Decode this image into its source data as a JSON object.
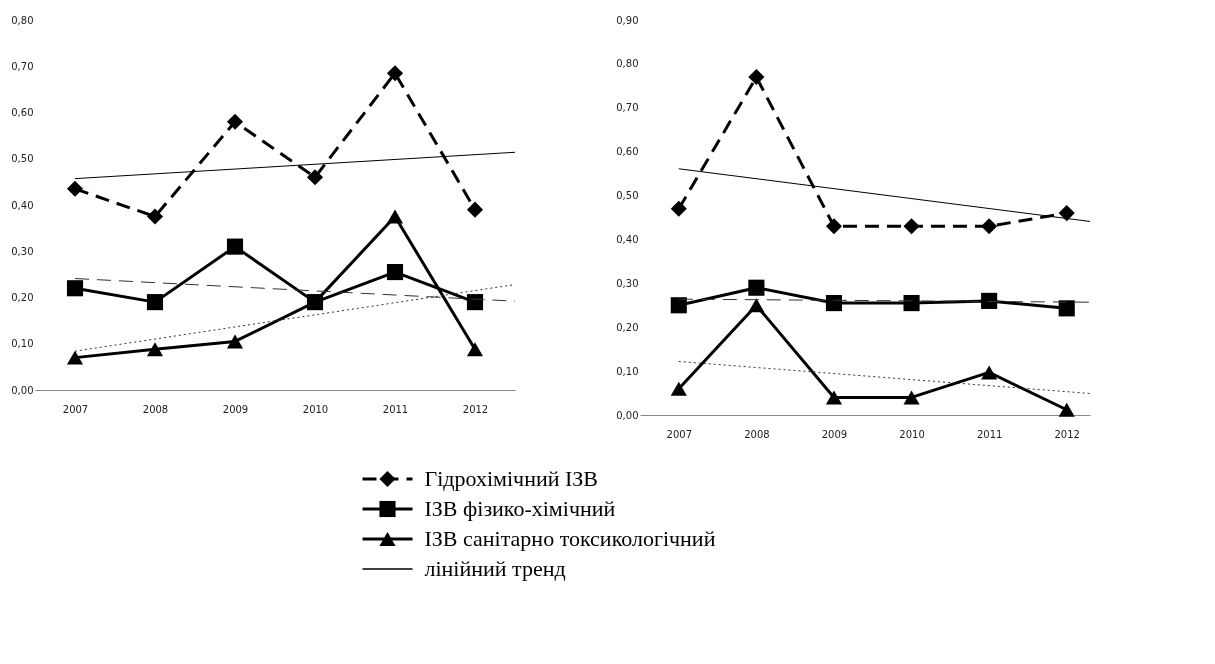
{
  "chart_data": [
    {
      "type": "line",
      "legend": "bottom",
      "xlim": [
        2006.5,
        2012.5
      ],
      "xticks": [
        2007,
        2008,
        2009,
        2010,
        2011,
        2012
      ],
      "ylim": [
        0,
        0.8
      ],
      "yticks": [
        {
          "value": 0,
          "label": "0,00"
        },
        {
          "value": 0.1,
          "label": "0,10"
        },
        {
          "value": 0.2,
          "label": "0,20"
        },
        {
          "value": 0.3,
          "label": "0,30"
        },
        {
          "value": 0.4,
          "label": "0,40"
        },
        {
          "value": 0.5,
          "label": "0,50"
        },
        {
          "value": 0.6,
          "label": "0,60"
        },
        {
          "value": 0.7,
          "label": "0,70"
        },
        {
          "value": 0.8,
          "label": "0,80"
        }
      ],
      "x": [
        2007,
        2008,
        2009,
        2010,
        2011,
        2012
      ],
      "series": [
        {
          "name": "Гідрохімічний ІЗВ",
          "color": "#000000",
          "marker": "diamond",
          "line_style": "dashed",
          "values": [
            0.435,
            0.375,
            0.58,
            0.46,
            0.685,
            0.39
          ]
        },
        {
          "name": "ІЗВ фізико-хімічний",
          "color": "#000000",
          "marker": "square",
          "line_style": "solid",
          "values": [
            0.22,
            0.19,
            0.31,
            0.19,
            0.255,
            0.19
          ]
        },
        {
          "name": "ІЗВ санітарно токсикологічний",
          "color": "#000000",
          "marker": "triangle",
          "line_style": "solid",
          "values": [
            0.07,
            0.088,
            0.105,
            0.19,
            0.375,
            0.088
          ]
        },
        {
          "name": "лінійний тренд",
          "type": "line",
          "color": "#000000",
          "marker": "none",
          "line_style": "solid",
          "x": [
            2007,
            2012.5
          ],
          "values": [
            0.457,
            0.514
          ]
        },
        {
          "type": "line",
          "color": "#333333",
          "marker": "none",
          "line_style": "dashed",
          "x": [
            2007,
            2012.5
          ],
          "values": [
            0.241,
            0.192
          ]
        },
        {
          "type": "line",
          "color": "#333333",
          "marker": "none",
          "line_style": "dotted",
          "x": [
            2007,
            2012.5
          ],
          "values": [
            0.084,
            0.228
          ]
        }
      ]
    },
    {
      "type": "line",
      "xlim": [
        2006.5,
        2012.3
      ],
      "xticks": [
        2007,
        2008,
        2009,
        2010,
        2011,
        2012
      ],
      "ylim": [
        0,
        0.9
      ],
      "yticks": [
        {
          "value": 0,
          "label": "0,00"
        },
        {
          "value": 0.1,
          "label": "0,10"
        },
        {
          "value": 0.2,
          "label": "0,20"
        },
        {
          "value": 0.3,
          "label": "0,30"
        },
        {
          "value": 0.4,
          "label": "0,40"
        },
        {
          "value": 0.5,
          "label": "0,50"
        },
        {
          "value": 0.6,
          "label": "0,60"
        },
        {
          "value": 0.7,
          "label": "0,70"
        },
        {
          "value": 0.8,
          "label": "0,80"
        },
        {
          "value": 0.9,
          "label": "0,90"
        }
      ],
      "x": [
        2007,
        2008,
        2009,
        2010,
        2011,
        2012
      ],
      "series": [
        {
          "color": "#000000",
          "marker": "diamond",
          "line_style": "dashed",
          "values": [
            0.47,
            0.77,
            0.43,
            0.43,
            0.43,
            0.46
          ]
        },
        {
          "color": "#000000",
          "marker": "square",
          "line_style": "solid",
          "values": [
            0.25,
            0.29,
            0.255,
            0.255,
            0.26,
            0.243
          ]
        },
        {
          "color": "#000000",
          "marker": "triangle",
          "line_style": "solid",
          "values": [
            0.06,
            0.25,
            0.04,
            0.04,
            0.097,
            0.012
          ]
        },
        {
          "type": "line",
          "color": "#000000",
          "marker": "none",
          "line_style": "solid",
          "x": [
            2007,
            2012.3
          ],
          "values": [
            0.561,
            0.441
          ]
        },
        {
          "type": "line",
          "color": "#333333",
          "marker": "none",
          "line_style": "dashed",
          "x": [
            2007,
            2012.3
          ],
          "values": [
            0.264,
            0.257
          ]
        },
        {
          "type": "line",
          "color": "#333333",
          "marker": "none",
          "line_style": "dotted",
          "x": [
            2007,
            2012.3
          ],
          "values": [
            0.122,
            0.049
          ]
        }
      ]
    }
  ]
}
